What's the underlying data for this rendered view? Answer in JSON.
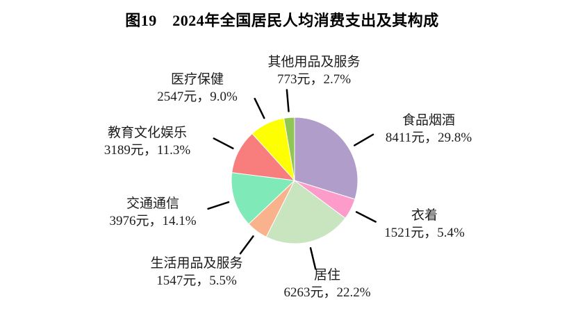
{
  "chart_data": {
    "type": "pie",
    "title": "图19　2024年全国居民人均消费支出及其构成",
    "unit": "元",
    "start_angle": "12-o-clock",
    "direction": "clockwise",
    "total_percent": 100.0,
    "leader_line_color": "#000000",
    "slices": [
      {
        "name": "食品烟酒",
        "value": 8411,
        "percent": 29.8,
        "label": "8411元，29.8%",
        "color": "#b19dca"
      },
      {
        "name": "衣着",
        "value": 1521,
        "percent": 5.4,
        "label": "1521元，5.4%",
        "color": "#fd9cca"
      },
      {
        "name": "居住",
        "value": 6263,
        "percent": 22.2,
        "label": "6263元，22.2%",
        "color": "#c8e5c0"
      },
      {
        "name": "生活用品及服务",
        "value": 1547,
        "percent": 5.5,
        "label": "1547元，5.5%",
        "color": "#f8b28c"
      },
      {
        "name": "交通通信",
        "value": 3976,
        "percent": 14.1,
        "label": "3976元，14.1%",
        "color": "#7feab7"
      },
      {
        "name": "教育文化娱乐",
        "value": 3189,
        "percent": 11.3,
        "label": "3189元，11.3%",
        "color": "#f87d7d"
      },
      {
        "name": "医疗保健",
        "value": 2547,
        "percent": 9.0,
        "label": "2547元，9.0%",
        "color": "#feff00"
      },
      {
        "name": "其他用品及服务",
        "value": 773,
        "percent": 2.7,
        "label": "773元，2.7%",
        "color": "#90c753"
      }
    ]
  }
}
